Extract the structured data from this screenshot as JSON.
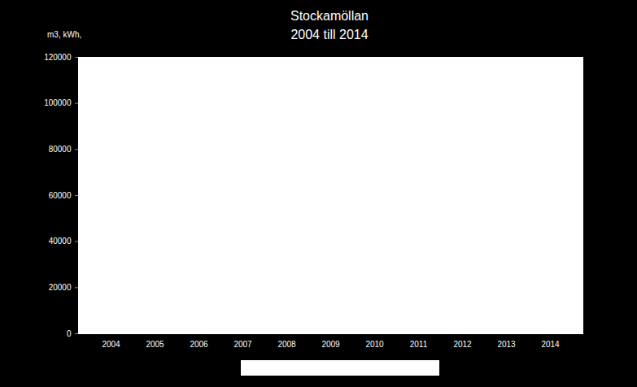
{
  "chart_data": {
    "type": "bar",
    "title": "Stockamöllan",
    "subtitle": "2004 till 2014",
    "ylabel": "m3, kWh,",
    "categories": [
      "2004",
      "2005",
      "2006",
      "2007",
      "2008",
      "2009",
      "2010",
      "2011",
      "2012",
      "2013",
      "2014"
    ],
    "values": [
      null,
      null,
      null,
      null,
      null,
      null,
      null,
      null,
      null,
      null,
      null
    ],
    "ylim": [
      0,
      120000
    ],
    "yticks": [
      0,
      20000,
      40000,
      60000,
      80000,
      100000,
      120000
    ]
  }
}
